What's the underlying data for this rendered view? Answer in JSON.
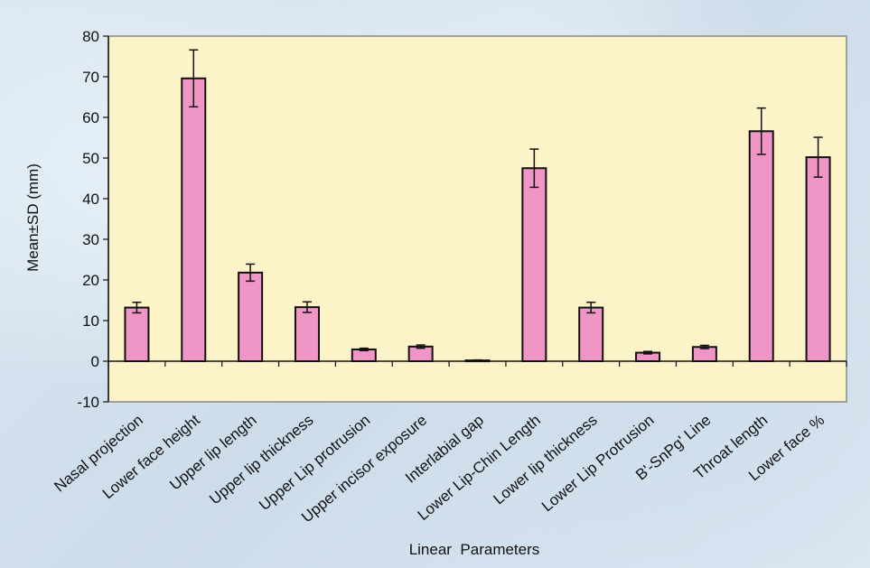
{
  "chart_data": {
    "type": "bar",
    "title": "",
    "xlabel": "Linear  Parameters",
    "ylabel": "Mean±SD (mm)",
    "ylim": [
      -10,
      80
    ],
    "yticks": [
      "-10",
      "0",
      "10",
      "20",
      "30",
      "40",
      "50",
      "60",
      "70",
      "80"
    ],
    "grid": false,
    "legend": "none",
    "categories": [
      "Nasal projection",
      "Lower face height",
      "Upper lip length",
      "Upper lip thickness",
      "Upper Lip protrusion",
      "Upper incisor exposure",
      "Interlabial gap",
      "Lower Lip-Chin Length",
      "Lower lip thickness",
      "Lower Lip Protrusion",
      "B'-SnPg' Line",
      "Throat length",
      "Lower face %"
    ],
    "values": [
      13.2,
      69.6,
      21.8,
      13.3,
      2.9,
      3.6,
      0.2,
      47.5,
      13.2,
      2.1,
      3.5,
      56.6,
      50.2
    ],
    "errors": [
      1.3,
      7.0,
      2.1,
      1.3,
      0.3,
      0.4,
      0.1,
      4.7,
      1.3,
      0.3,
      0.4,
      5.7,
      4.9
    ],
    "colors": {
      "bar_fill": "#f096c6",
      "bar_stroke": "#111111",
      "plot_area": "#fdf3c8"
    }
  }
}
